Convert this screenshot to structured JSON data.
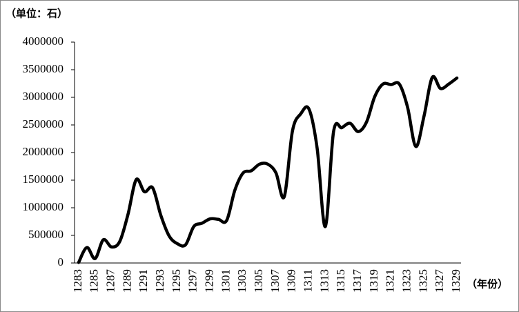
{
  "chart_data": {
    "type": "line",
    "y_unit_label": "（单位：石）",
    "x_unit_label": "（年份）",
    "categories": [
      "1283",
      null,
      "1285",
      null,
      "1287",
      null,
      "1289",
      null,
      "1291",
      null,
      "1293",
      null,
      "1295",
      null,
      "1297",
      null,
      "1299",
      null,
      "1301",
      null,
      "1303",
      null,
      "1305",
      null,
      "1307",
      null,
      "1309",
      null,
      "1311",
      null,
      "1313",
      null,
      "1315",
      null,
      "1317",
      null,
      "1319",
      null,
      "1321",
      null,
      "1323",
      null,
      "1325",
      null,
      "1327",
      null,
      "1329"
    ],
    "values": [
      10000,
      280000,
      80000,
      420000,
      290000,
      390000,
      880000,
      1510000,
      1290000,
      1360000,
      860000,
      490000,
      350000,
      330000,
      660000,
      720000,
      800000,
      790000,
      770000,
      1320000,
      1630000,
      1670000,
      1790000,
      1790000,
      1630000,
      1200000,
      2390000,
      2700000,
      2790000,
      2080000,
      660000,
      2380000,
      2450000,
      2530000,
      2380000,
      2550000,
      3010000,
      3240000,
      3230000,
      3240000,
      2820000,
      2110000,
      2660000,
      3360000,
      3160000,
      3240000,
      3350000
    ],
    "color": "#000000",
    "ylim": [
      0,
      4000000
    ],
    "yticks": [
      0,
      500000,
      1000000,
      1500000,
      2000000,
      2500000,
      3000000,
      3500000,
      4000000
    ],
    "grid": false
  }
}
